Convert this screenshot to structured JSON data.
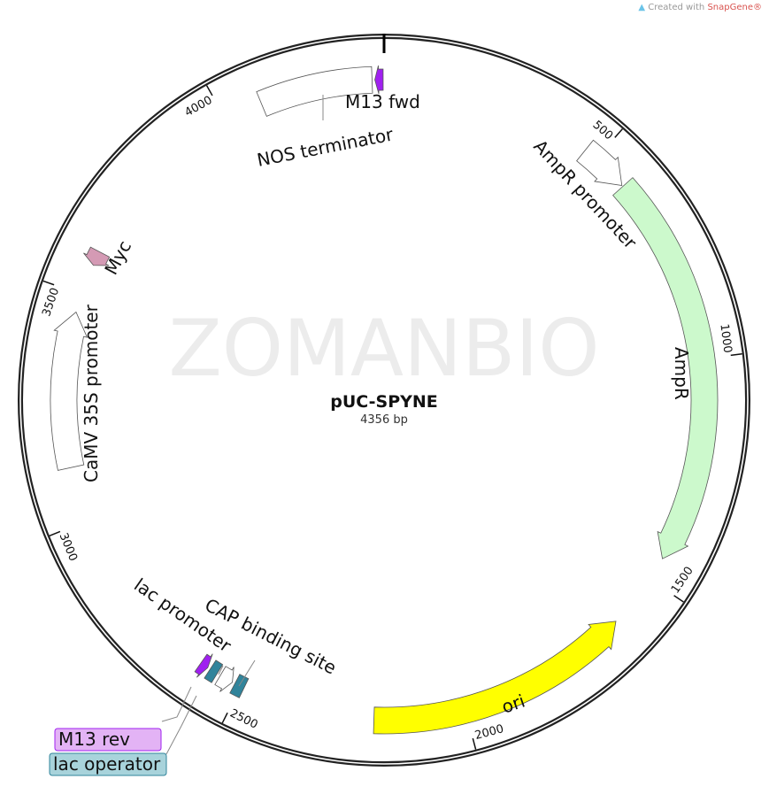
{
  "credit": {
    "prefix": "Created with ",
    "brand": "SnapGene®",
    "icon": "snapgene-logo-icon"
  },
  "watermark": "ZOMANBIO",
  "plasmid": {
    "name": "pUC-SPYNE",
    "length_label": "4356 bp",
    "length": 4356
  },
  "ticks": [
    {
      "bp": 500,
      "label": "500"
    },
    {
      "bp": 1000,
      "label": "1000"
    },
    {
      "bp": 1500,
      "label": "1500"
    },
    {
      "bp": 2000,
      "label": "2000"
    },
    {
      "bp": 2500,
      "label": "2500"
    },
    {
      "bp": 3000,
      "label": "3000"
    },
    {
      "bp": 3500,
      "label": "3500"
    },
    {
      "bp": 4000,
      "label": "4000"
    }
  ],
  "features": [
    {
      "name": "M13 fwd",
      "start": 4336,
      "end": 4354,
      "direction": "reverse",
      "color": "#a020f0"
    },
    {
      "name": "NOS terminator",
      "start": 4084,
      "end": 4330,
      "direction": "none",
      "color": "#ffffff"
    },
    {
      "name": "AmpR promoter",
      "start": 470,
      "end": 580,
      "direction": "forward",
      "color": "#ffffff"
    },
    {
      "name": "AmpR",
      "start": 583,
      "end": 1448,
      "direction": "forward",
      "color": "#ccf9cc"
    },
    {
      "name": "ori",
      "start": 1617,
      "end": 2200,
      "direction": "reverse",
      "color": "#ffff00"
    },
    {
      "name": "CAP binding site",
      "start": 2492,
      "end": 2514,
      "direction": "none",
      "color": "#31849b"
    },
    {
      "name": "lac promoter",
      "start": 2520,
      "end": 2550,
      "direction": "reverse",
      "color": "#ffffff"
    },
    {
      "name": "lac operator",
      "start": 2558,
      "end": 2576,
      "direction": "none",
      "color": "#31849b"
    },
    {
      "name": "M13 rev",
      "start": 2582,
      "end": 2600,
      "direction": "reverse",
      "color": "#a020f0"
    },
    {
      "name": "Myc",
      "start": 3568,
      "end": 3600,
      "direction": "reverse",
      "color": "#d49ab4"
    },
    {
      "name": "CaMV 35S promoter",
      "start": 3120,
      "end": 3460,
      "direction": "forward",
      "color": "#ffffff"
    }
  ],
  "boxed_labels": {
    "m13_rev": {
      "text": "M13 rev",
      "color": "#e3b3f5",
      "border": "#a020f0"
    },
    "lac_operator": {
      "text": "lac operator",
      "color": "#a8d3db",
      "border": "#31849b"
    }
  }
}
